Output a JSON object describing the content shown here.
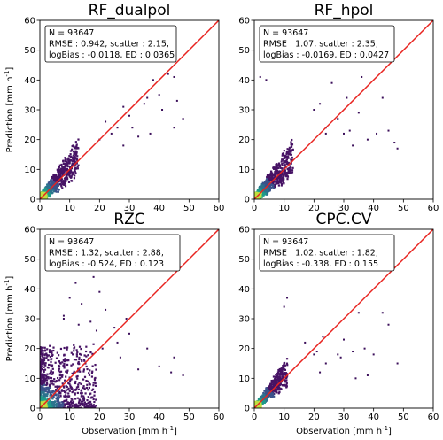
{
  "figure": {
    "xlabel": {
      "text": "Observation [mm h",
      "sup": "-1",
      "close": "]"
    },
    "ylabel": {
      "text": "Prediction [mm h",
      "sup": "-1",
      "close": "]"
    }
  },
  "colors": {
    "identity_line": "#e8231f",
    "scatter_low": "#3b0f5a",
    "scatter_mid": "#21918c",
    "scatter_high": "#9fda3a"
  },
  "chart_data": [
    {
      "type": "scatter",
      "title": "RF_dualpol",
      "xlim": [
        0,
        60
      ],
      "ylim": [
        0,
        60
      ],
      "xticks": [
        "0",
        "10",
        "20",
        "30",
        "40",
        "50",
        "60"
      ],
      "yticks": [
        "0",
        "10",
        "20",
        "30",
        "40",
        "50",
        "60"
      ],
      "identity_line": true,
      "stats": [
        "N = 93647",
        "RMSE : 0.942, scatter : 2.15,",
        "logBias : -0.0118, ED : 0.0365"
      ],
      "outliers": [
        [
          45,
          41
        ],
        [
          38,
          40
        ],
        [
          41,
          30
        ],
        [
          35,
          32
        ],
        [
          40,
          35
        ],
        [
          43,
          42
        ],
        [
          48,
          27
        ],
        [
          30,
          28
        ],
        [
          26,
          24
        ],
        [
          33,
          21
        ],
        [
          28,
          31
        ],
        [
          24,
          22
        ],
        [
          37,
          22
        ],
        [
          46,
          33
        ],
        [
          22,
          26
        ],
        [
          28,
          18
        ],
        [
          31,
          24
        ],
        [
          45,
          24
        ],
        [
          36,
          34
        ],
        [
          20,
          20
        ]
      ]
    },
    {
      "type": "scatter",
      "title": "RF_hpol",
      "xlim": [
        0,
        60
      ],
      "ylim": [
        0,
        60
      ],
      "xticks": [
        "0",
        "10",
        "20",
        "30",
        "40",
        "50",
        "60"
      ],
      "yticks": [
        "0",
        "10",
        "20",
        "30",
        "40",
        "50",
        "60"
      ],
      "identity_line": true,
      "stats": [
        "N = 93647",
        "RMSE : 1.07, scatter : 2.35,",
        "logBias : -0.0169, ED : 0.0427"
      ],
      "outliers": [
        [
          2,
          41
        ],
        [
          4,
          40
        ],
        [
          26,
          39
        ],
        [
          36,
          41
        ],
        [
          43,
          34
        ],
        [
          47,
          19
        ],
        [
          48,
          17
        ],
        [
          45,
          23
        ],
        [
          32,
          23
        ],
        [
          35,
          29
        ],
        [
          28,
          27
        ],
        [
          30,
          22
        ],
        [
          24,
          24
        ],
        [
          38,
          20
        ],
        [
          41,
          22
        ],
        [
          24,
          22
        ],
        [
          22,
          32
        ],
        [
          33,
          18
        ],
        [
          31,
          34
        ],
        [
          20,
          30
        ]
      ]
    },
    {
      "type": "scatter",
      "title": "RZC",
      "xlim": [
        0,
        60
      ],
      "ylim": [
        0,
        60
      ],
      "xticks": [
        "0",
        "10",
        "20",
        "30",
        "40",
        "50",
        "60"
      ],
      "yticks": [
        "0",
        "10",
        "20",
        "30",
        "40",
        "50",
        "60"
      ],
      "identity_line": true,
      "stats": [
        "N = 93647",
        "RMSE : 1.32, scatter : 2.88,",
        "logBias : -0.524, ED : 0.123"
      ],
      "outliers": [
        [
          15,
          47
        ],
        [
          18,
          44
        ],
        [
          12,
          42
        ],
        [
          20,
          39
        ],
        [
          10,
          37
        ],
        [
          14,
          35
        ],
        [
          22,
          33
        ],
        [
          8,
          31
        ],
        [
          17,
          29
        ],
        [
          25,
          27
        ],
        [
          30,
          25
        ],
        [
          26,
          22
        ],
        [
          21,
          20
        ],
        [
          27,
          17
        ],
        [
          33,
          13
        ],
        [
          44,
          12
        ],
        [
          45,
          17
        ],
        [
          48,
          11
        ],
        [
          40,
          14
        ],
        [
          36,
          20
        ],
        [
          8,
          30
        ],
        [
          13,
          28
        ],
        [
          19,
          26
        ],
        [
          29,
          30
        ]
      ]
    },
    {
      "type": "scatter",
      "title": "CPC.CV",
      "xlim": [
        0,
        60
      ],
      "ylim": [
        0,
        60
      ],
      "xticks": [
        "0",
        "10",
        "20",
        "30",
        "40",
        "50",
        "60"
      ],
      "yticks": [
        "0",
        "10",
        "20",
        "30",
        "40",
        "50",
        "60"
      ],
      "identity_line": true,
      "stats": [
        "N = 93647",
        "RMSE : 1.02, scatter : 1.82,",
        "logBias : -0.338, ED : 0.155"
      ],
      "outliers": [
        [
          11,
          37
        ],
        [
          10,
          34
        ],
        [
          35,
          32
        ],
        [
          43,
          32
        ],
        [
          45,
          28
        ],
        [
          30,
          23
        ],
        [
          48,
          15
        ],
        [
          28,
          18
        ],
        [
          24,
          15
        ],
        [
          20,
          18
        ],
        [
          38,
          11
        ],
        [
          34,
          10
        ],
        [
          23,
          24
        ],
        [
          29,
          17
        ],
        [
          17,
          22
        ],
        [
          37,
          20
        ],
        [
          40,
          18
        ],
        [
          22,
          12
        ],
        [
          21,
          19
        ],
        [
          33,
          19
        ]
      ]
    }
  ]
}
